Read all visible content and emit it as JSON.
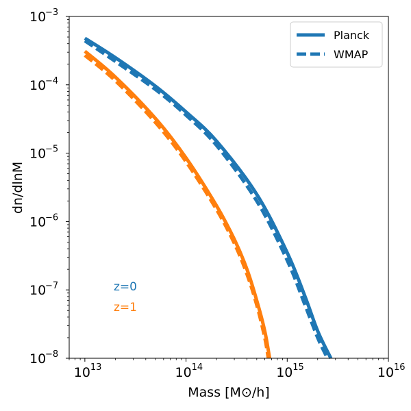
{
  "chart_data": {
    "type": "line",
    "xscale": "log",
    "yscale": "log",
    "xlim": [
      7000000000000.0,
      1e+16
    ],
    "ylim": [
      1e-08,
      0.001
    ],
    "xlabel": "Mass [M⊙/h]",
    "ylabel": "dn/dlnM",
    "grid": false,
    "legend_position": "top-right",
    "x_ticks": [
      {
        "value": 10000000000000.0,
        "label": "10",
        "exp": "13"
      },
      {
        "value": 100000000000000.0,
        "label": "10",
        "exp": "14"
      },
      {
        "value": 1000000000000000.0,
        "label": "10",
        "exp": "15"
      },
      {
        "value": 1e+16,
        "label": "10",
        "exp": "16"
      }
    ],
    "y_ticks": [
      {
        "value": 1e-08,
        "label": "10",
        "exp": "−8"
      },
      {
        "value": 1e-07,
        "label": "10",
        "exp": "−7"
      },
      {
        "value": 1e-06,
        "label": "10",
        "exp": "−6"
      },
      {
        "value": 1e-05,
        "label": "10",
        "exp": "−5"
      },
      {
        "value": 0.0001,
        "label": "10",
        "exp": "−4"
      },
      {
        "value": 0.001,
        "label": "10",
        "exp": "−3"
      }
    ],
    "legend": [
      {
        "label": "Planck",
        "style": "solid",
        "color": "#1f77b4"
      },
      {
        "label": "WMAP",
        "style": "dashed",
        "color": "#1f77b4"
      }
    ],
    "annotations": [
      {
        "text": "z=0",
        "color": "#1f77b4"
      },
      {
        "text": "z=1",
        "color": "#ff7f0e"
      }
    ],
    "series": [
      {
        "cosmology": "Planck",
        "redshift": "z=0",
        "color": "#1f77b4",
        "style": "solid",
        "x": [
          10000000000000.0,
          20000000000000.0,
          50000000000000.0,
          100000000000000.0,
          200000000000000.0,
          500000000000000.0,
          1000000000000000.0,
          1500000000000000.0,
          2000000000000000.0,
          2700000000000000.0
        ],
        "y": [
          0.00048,
          0.00025,
          9.5e-05,
          4e-05,
          1.5e-05,
          2.5e-06,
          3.5e-07,
          8e-08,
          2.5e-08,
          1e-08
        ]
      },
      {
        "cosmology": "WMAP",
        "redshift": "z=0",
        "color": "#1f77b4",
        "style": "dashed",
        "x": [
          10000000000000.0,
          20000000000000.0,
          50000000000000.0,
          100000000000000.0,
          200000000000000.0,
          500000000000000.0,
          1000000000000000.0,
          1500000000000000.0,
          2000000000000000.0,
          2500000000000000.0
        ],
        "y": [
          0.00044,
          0.00022,
          8.5e-05,
          3.6e-05,
          1.3e-05,
          2e-06,
          2.7e-07,
          6e-08,
          2e-08,
          1e-08
        ]
      },
      {
        "cosmology": "Planck",
        "redshift": "z=1",
        "color": "#ff7f0e",
        "style": "solid",
        "x": [
          10000000000000.0,
          20000000000000.0,
          50000000000000.0,
          100000000000000.0,
          200000000000000.0,
          300000000000000.0,
          400000000000000.0,
          500000000000000.0,
          600000000000000.0,
          670000000000000.0
        ],
        "y": [
          0.00031,
          0.00013,
          3.2e-05,
          8.5e-06,
          1.7e-06,
          5.5e-07,
          2e-07,
          7e-08,
          2.5e-08,
          1e-08
        ]
      },
      {
        "cosmology": "WMAP",
        "redshift": "z=1",
        "color": "#ff7f0e",
        "style": "dashed",
        "x": [
          10000000000000.0,
          20000000000000.0,
          50000000000000.0,
          100000000000000.0,
          200000000000000.0,
          300000000000000.0,
          400000000000000.0,
          500000000000000.0,
          600000000000000.0,
          650000000000000.0
        ],
        "y": [
          0.00027,
          0.000115,
          2.8e-05,
          7.5e-06,
          1.5e-06,
          4.8e-07,
          1.7e-07,
          6e-08,
          2e-08,
          1e-08
        ]
      }
    ]
  }
}
